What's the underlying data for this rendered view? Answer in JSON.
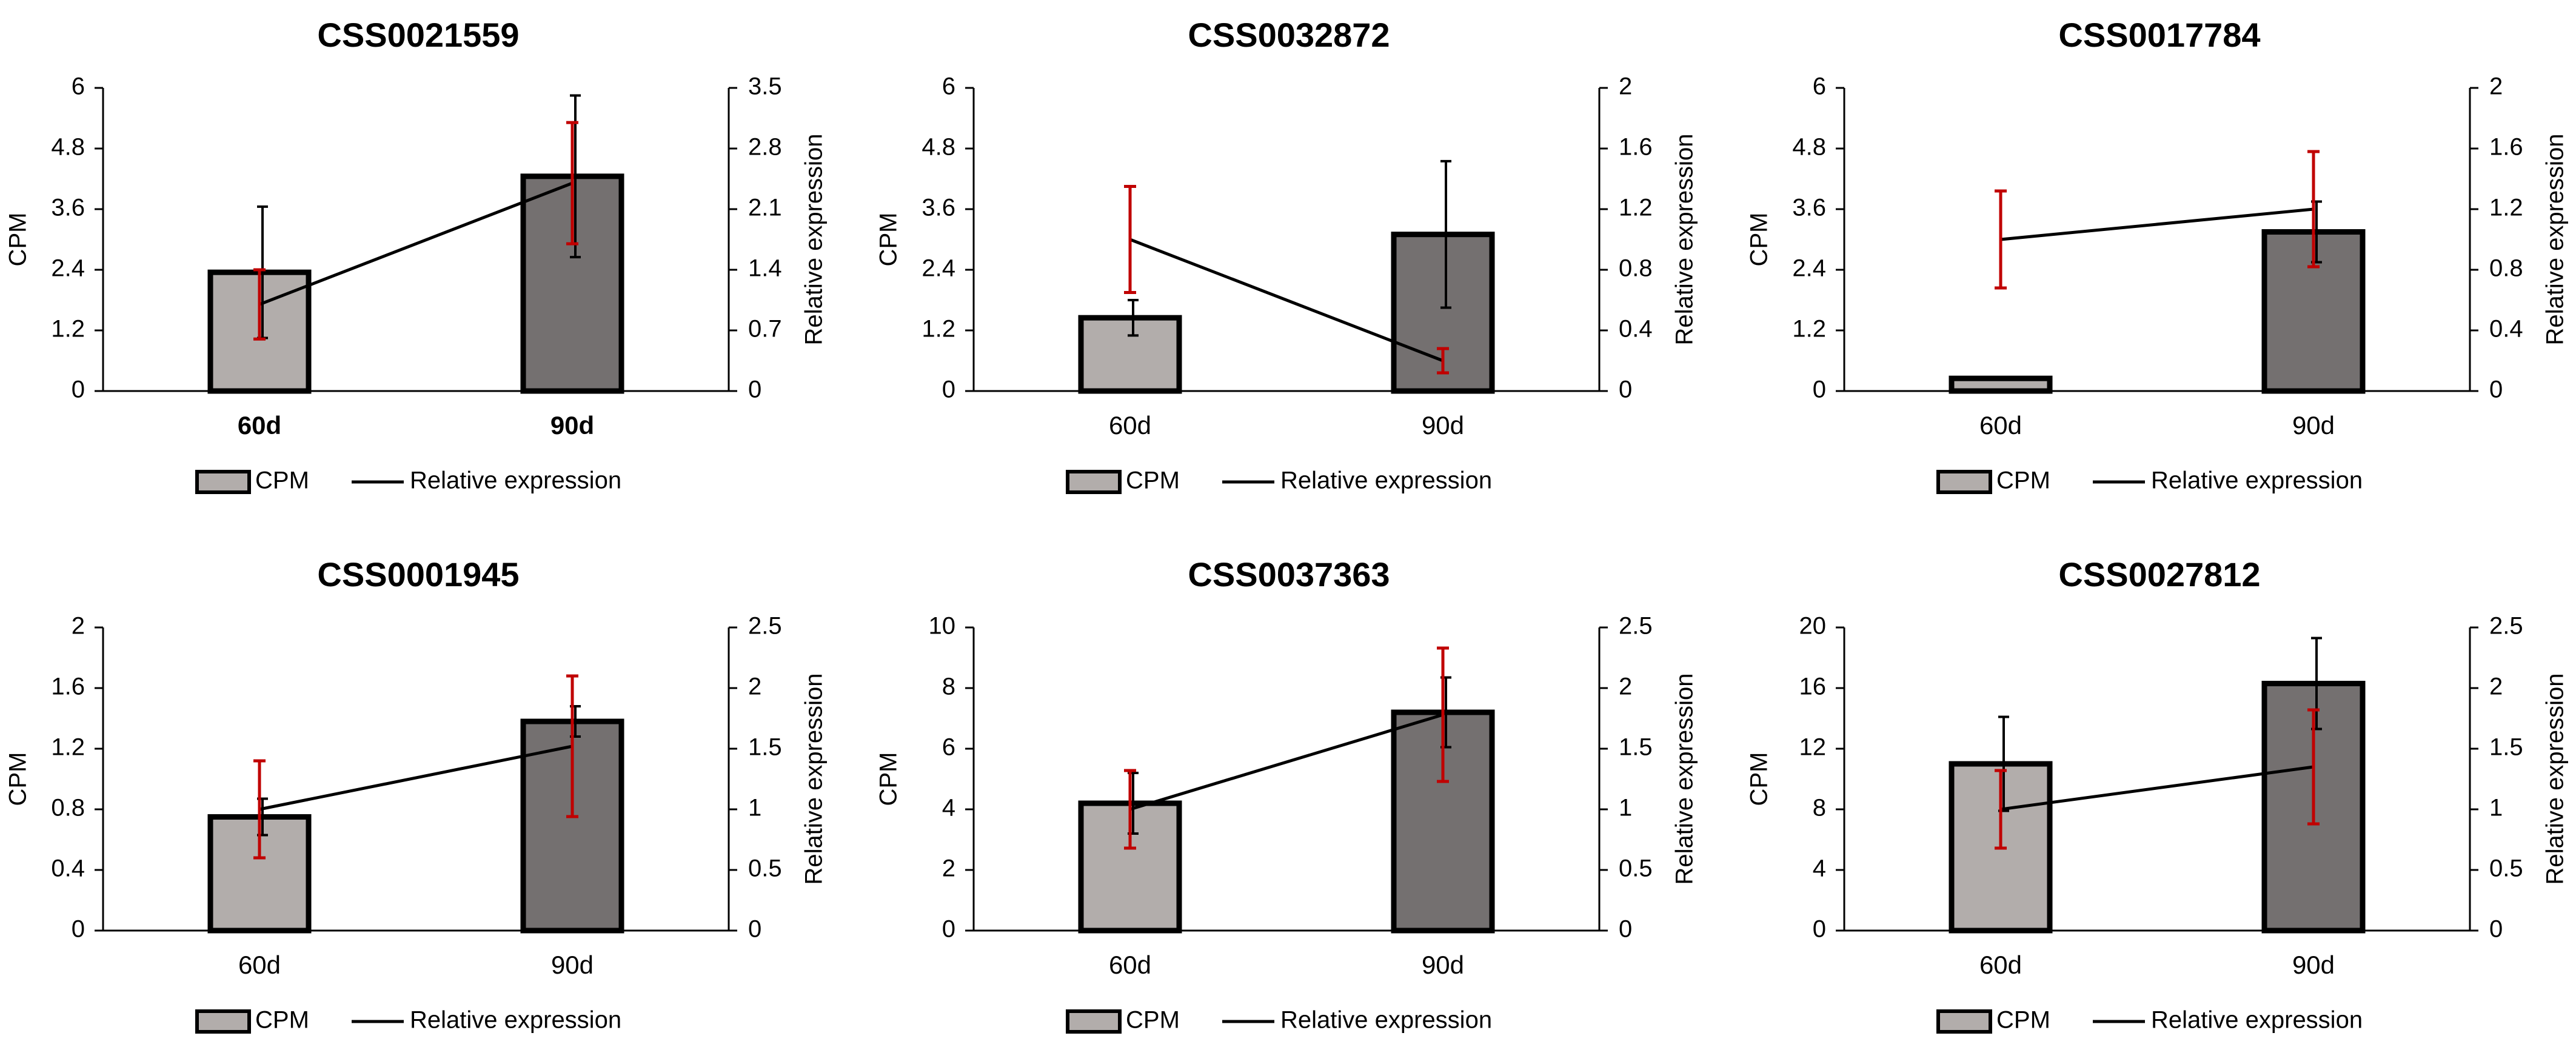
{
  "colors": {
    "bar60": "#b2adab",
    "bar90": "#747070",
    "bar_edge": "#000000",
    "line": "#000000",
    "err_cpm": "#000000",
    "err_rel": "#c00000"
  },
  "legend": {
    "cpm": "CPM",
    "rel": "Relative expression"
  },
  "chart_data": [
    {
      "type": "bar+line",
      "title": "CSS0021559",
      "categories": [
        "60d",
        "90d"
      ],
      "bold_categories": true,
      "ylabel": "CPM",
      "y2label": "Relative expression",
      "ylim": [
        0,
        6
      ],
      "yticks": [
        "0",
        "1.2",
        "2.4",
        "3.6",
        "4.8",
        "6"
      ],
      "y2lim": [
        0,
        3.5
      ],
      "y2ticks": [
        "0",
        "0.7",
        "1.4",
        "2.1",
        "2.8",
        "3.5"
      ],
      "series": [
        {
          "name": "CPM",
          "values": [
            2.35,
            4.25
          ],
          "errors": [
            1.3,
            1.6
          ]
        },
        {
          "name": "Relative expression",
          "values": [
            1.0,
            2.4
          ],
          "errors": [
            0.4,
            0.7
          ]
        }
      ]
    },
    {
      "type": "bar+line",
      "title": "CSS0032872",
      "categories": [
        "60d",
        "90d"
      ],
      "bold_categories": false,
      "ylabel": "CPM",
      "y2label": "Relative expression",
      "ylim": [
        0,
        6
      ],
      "yticks": [
        "0",
        "1.2",
        "2.4",
        "3.6",
        "4.8",
        "6"
      ],
      "y2lim": [
        0,
        2
      ],
      "y2ticks": [
        "0",
        "0.4",
        "0.8",
        "1.2",
        "1.6",
        "2"
      ],
      "series": [
        {
          "name": "CPM",
          "values": [
            1.45,
            3.1
          ],
          "errors": [
            0.35,
            1.45
          ]
        },
        {
          "name": "Relative expression",
          "values": [
            1.0,
            0.2
          ],
          "errors": [
            0.35,
            0.08
          ]
        }
      ]
    },
    {
      "type": "bar+line",
      "title": "CSS0017784",
      "categories": [
        "60d",
        "90d"
      ],
      "bold_categories": false,
      "ylabel": "CPM",
      "y2label": "Relative expression",
      "ylim": [
        0,
        6
      ],
      "yticks": [
        "0",
        "1.2",
        "2.4",
        "3.6",
        "4.8",
        "6"
      ],
      "y2lim": [
        0,
        2
      ],
      "y2ticks": [
        "0",
        "0.4",
        "0.8",
        "1.2",
        "1.6",
        "2"
      ],
      "series": [
        {
          "name": "CPM",
          "values": [
            0.25,
            3.15
          ],
          "errors": [
            0.02,
            0.6
          ]
        },
        {
          "name": "Relative expression",
          "values": [
            1.0,
            1.2
          ],
          "errors": [
            0.32,
            0.38
          ]
        }
      ]
    },
    {
      "type": "bar+line",
      "title": "CSS0001945",
      "categories": [
        "60d",
        "90d"
      ],
      "bold_categories": false,
      "ylabel": "CPM",
      "y2label": "Relative expression",
      "ylim": [
        0,
        2
      ],
      "yticks": [
        "0",
        "0.4",
        "0.8",
        "1.2",
        "1.6",
        "2"
      ],
      "y2lim": [
        0,
        2.5
      ],
      "y2ticks": [
        "0",
        "0.5",
        "1",
        "1.5",
        "2",
        "2.5"
      ],
      "series": [
        {
          "name": "CPM",
          "values": [
            0.75,
            1.38
          ],
          "errors": [
            0.12,
            0.1
          ]
        },
        {
          "name": "Relative expression",
          "values": [
            1.0,
            1.52
          ],
          "errors": [
            0.4,
            0.58
          ]
        }
      ]
    },
    {
      "type": "bar+line",
      "title": "CSS0037363",
      "categories": [
        "60d",
        "90d"
      ],
      "bold_categories": false,
      "ylabel": "CPM",
      "y2label": "Relative expression",
      "ylim": [
        0,
        10
      ],
      "yticks": [
        "0",
        "2",
        "4",
        "6",
        "8",
        "10"
      ],
      "y2lim": [
        0,
        2.5
      ],
      "y2ticks": [
        "0",
        "0.5",
        "1",
        "1.5",
        "2",
        "2.5"
      ],
      "series": [
        {
          "name": "CPM",
          "values": [
            4.2,
            7.2
          ],
          "errors": [
            1.0,
            1.15
          ]
        },
        {
          "name": "Relative expression",
          "values": [
            1.0,
            1.78
          ],
          "errors": [
            0.32,
            0.55
          ]
        }
      ]
    },
    {
      "type": "bar+line",
      "title": "CSS0027812",
      "categories": [
        "60d",
        "90d"
      ],
      "bold_categories": false,
      "ylabel": "CPM",
      "y2label": "Relative expression",
      "ylim": [
        0,
        20
      ],
      "yticks": [
        "0",
        "4",
        "8",
        "12",
        "16",
        "20"
      ],
      "y2lim": [
        0,
        2.5
      ],
      "y2ticks": [
        "0",
        "0.5",
        "1",
        "1.5",
        "2",
        "2.5"
      ],
      "series": [
        {
          "name": "CPM",
          "values": [
            11.0,
            16.3
          ],
          "errors": [
            3.1,
            3.0
          ]
        },
        {
          "name": "Relative expression",
          "values": [
            1.0,
            1.35
          ],
          "errors": [
            0.32,
            0.47
          ]
        }
      ]
    }
  ]
}
